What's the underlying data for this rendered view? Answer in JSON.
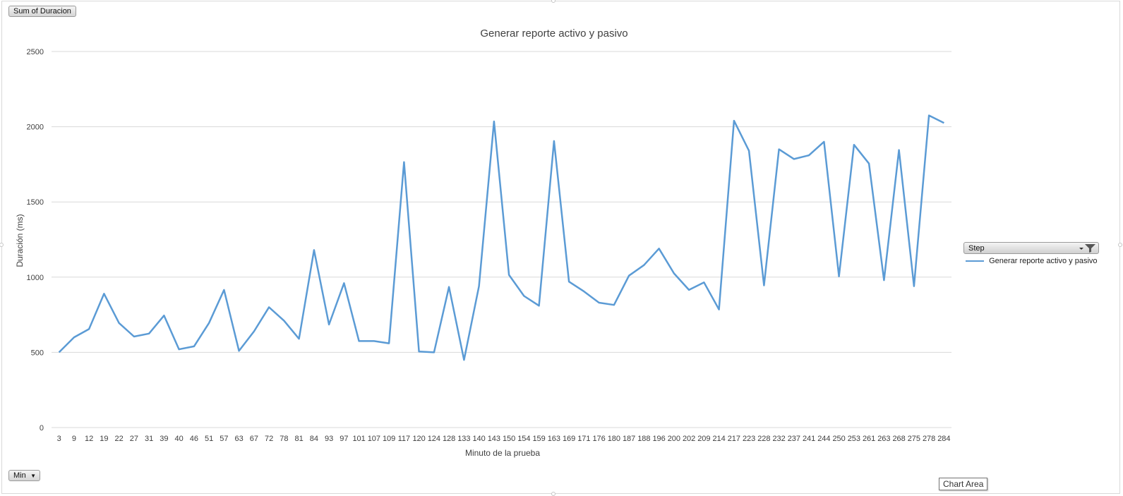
{
  "field_buttons": {
    "values_label": "Sum of Duracion",
    "axis_label": "Min"
  },
  "legend": {
    "title": "Step",
    "entry": "Generar  reporte activo y pasivo",
    "icon": "filter-icon"
  },
  "tooltip": "Chart Area",
  "colors": {
    "series": "#5b9bd5",
    "grid": "#d9d9d9",
    "text": "#404040"
  },
  "chart_data": {
    "type": "line",
    "title": "Generar  reporte activo y pasivo",
    "xlabel": "Minuto de la prueba",
    "ylabel": "Duración (ms)",
    "ylim": [
      0,
      2500
    ],
    "yticks": [
      "0",
      "500",
      "1000",
      "1500",
      "2000",
      "2500"
    ],
    "grid": true,
    "legend_position": "right",
    "categories": [
      "3",
      "9",
      "12",
      "19",
      "22",
      "27",
      "31",
      "39",
      "40",
      "46",
      "51",
      "57",
      "63",
      "67",
      "72",
      "78",
      "81",
      "84",
      "93",
      "97",
      "101",
      "107",
      "109",
      "117",
      "120",
      "124",
      "128",
      "133",
      "140",
      "143",
      "150",
      "154",
      "159",
      "163",
      "169",
      "171",
      "176",
      "180",
      "187",
      "188",
      "196",
      "200",
      "202",
      "209",
      "214",
      "217",
      "223",
      "228",
      "232",
      "237",
      "241",
      "244",
      "250",
      "253",
      "261",
      "263",
      "268",
      "275",
      "278",
      "284"
    ],
    "series": [
      {
        "name": "Generar  reporte activo y pasivo",
        "values": [
          500,
          600,
          655,
          890,
          695,
          605,
          625,
          745,
          520,
          540,
          695,
          915,
          510,
          640,
          800,
          710,
          590,
          1180,
          685,
          960,
          575,
          575,
          560,
          1765,
          505,
          500,
          935,
          450,
          940,
          2035,
          1015,
          875,
          810,
          1905,
          970,
          905,
          830,
          815,
          1010,
          1080,
          1190,
          1025,
          915,
          965,
          785,
          2040,
          1840,
          945,
          1850,
          1785,
          1810,
          1900,
          1005,
          1880,
          1755,
          980,
          1845,
          940,
          2075,
          2025
        ]
      }
    ]
  }
}
